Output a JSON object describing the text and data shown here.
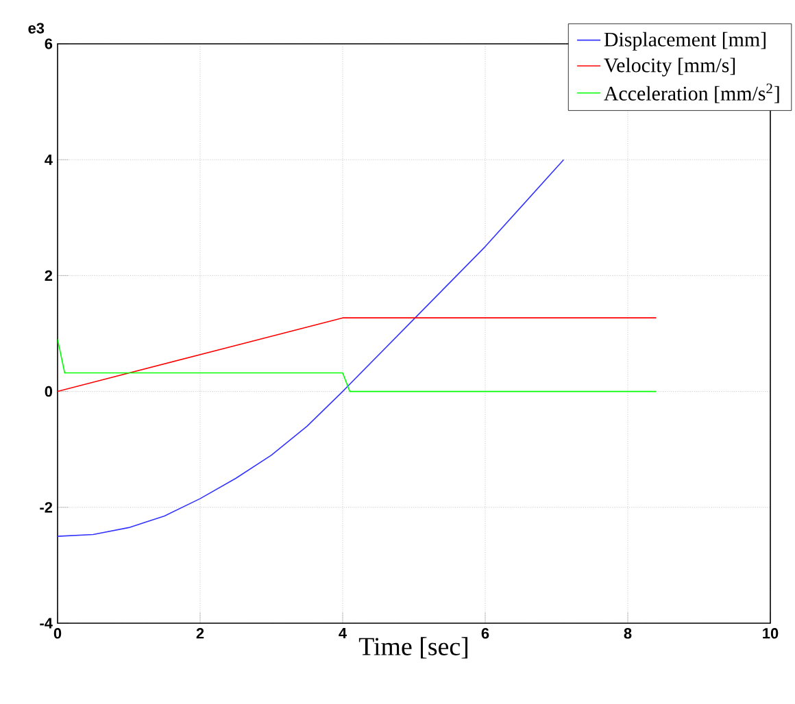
{
  "chart_data": {
    "type": "line",
    "xlabel": "Time [sec]",
    "annotations": [
      "e3"
    ],
    "xlim": [
      0,
      10
    ],
    "xticks": [
      0,
      2,
      4,
      6,
      8,
      10
    ],
    "ylim": [
      -4,
      6
    ],
    "yticks": [
      -4,
      -2,
      0,
      2,
      4,
      6
    ],
    "grid": true,
    "legend": "top right",
    "line_style": "solid",
    "marker": "none",
    "series": [
      {
        "name": "Displacement [mm]",
        "color": "#3333ff",
        "x": [
          0,
          0.5,
          1,
          1.5,
          2,
          2.5,
          3,
          3.5,
          4,
          5,
          6,
          7.1
        ],
        "values": [
          -2.5,
          -2.47,
          -2.35,
          -2.15,
          -1.85,
          -1.5,
          -1.1,
          -0.6,
          0.0,
          1.25,
          2.5,
          4.0
        ]
      },
      {
        "name": "Velocity [mm/s]",
        "color": "#ff0000",
        "x": [
          0,
          4,
          8.4
        ],
        "values": [
          0,
          1.27,
          1.27
        ]
      },
      {
        "name": "Acceleration [mm/s$^{2}$]",
        "color": "#00ff00",
        "x": [
          0,
          0.1,
          4,
          4.1,
          8.4
        ],
        "values": [
          0.9,
          0.32,
          0.32,
          0,
          0
        ]
      }
    ]
  }
}
